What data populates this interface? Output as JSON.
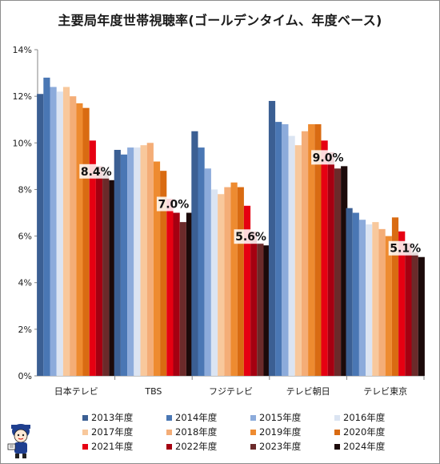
{
  "title": "主要局年度世帯視聴率(ゴールデンタイム、年度ベース)",
  "chart_data": {
    "type": "bar",
    "title": "主要局年度世帯視聴率(ゴールデンタイム、年度ベース)",
    "xlabel": "",
    "ylabel": "",
    "ylim": [
      0,
      14
    ],
    "yticks": [
      "0%",
      "2%",
      "4%",
      "6%",
      "8%",
      "10%",
      "12%",
      "14%"
    ],
    "grid": false,
    "legend_position": "bottom",
    "categories": [
      "日本テレビ",
      "TBS",
      "フジテレビ",
      "テレビ朝日",
      "テレビ東京"
    ],
    "series": [
      {
        "name": "2013年度",
        "color": "#3b5f93",
        "values": [
          12.1,
          9.7,
          10.5,
          11.8,
          7.2
        ]
      },
      {
        "name": "2014年度",
        "color": "#4a77b4",
        "values": [
          12.8,
          9.5,
          9.8,
          10.9,
          7.0
        ]
      },
      {
        "name": "2015年度",
        "color": "#8cabdb",
        "values": [
          12.4,
          9.8,
          8.9,
          10.8,
          6.7
        ]
      },
      {
        "name": "2016年度",
        "color": "#dbe4f2",
        "values": [
          12.2,
          9.8,
          8.0,
          10.3,
          6.5
        ]
      },
      {
        "name": "2017年度",
        "color": "#f8c89c",
        "values": [
          12.4,
          9.9,
          7.8,
          9.9,
          6.6
        ]
      },
      {
        "name": "2018年度",
        "color": "#f4ad77",
        "values": [
          12.0,
          10.0,
          8.1,
          10.5,
          6.3
        ]
      },
      {
        "name": "2019年度",
        "color": "#ee8b30",
        "values": [
          11.7,
          9.2,
          8.3,
          10.8,
          6.0
        ]
      },
      {
        "name": "2020年度",
        "color": "#d96b12",
        "values": [
          11.5,
          8.8,
          8.1,
          10.8,
          6.8
        ]
      },
      {
        "name": "2021年度",
        "color": "#e60012",
        "values": [
          10.1,
          7.6,
          7.3,
          10.1,
          6.2
        ]
      },
      {
        "name": "2022年度",
        "color": "#a50011",
        "values": [
          9.0,
          7.0,
          6.2,
          9.6,
          5.7
        ]
      },
      {
        "name": "2023年度",
        "color": "#6b2a2a",
        "values": [
          8.8,
          6.6,
          5.7,
          8.9,
          5.3
        ]
      },
      {
        "name": "2024年度",
        "color": "#1c0a0a",
        "values": [
          8.4,
          7.0,
          5.6,
          9.0,
          5.1
        ]
      }
    ],
    "annotations": [
      "8.4%",
      "7.0%",
      "5.6%",
      "9.0%",
      "5.1%"
    ]
  }
}
